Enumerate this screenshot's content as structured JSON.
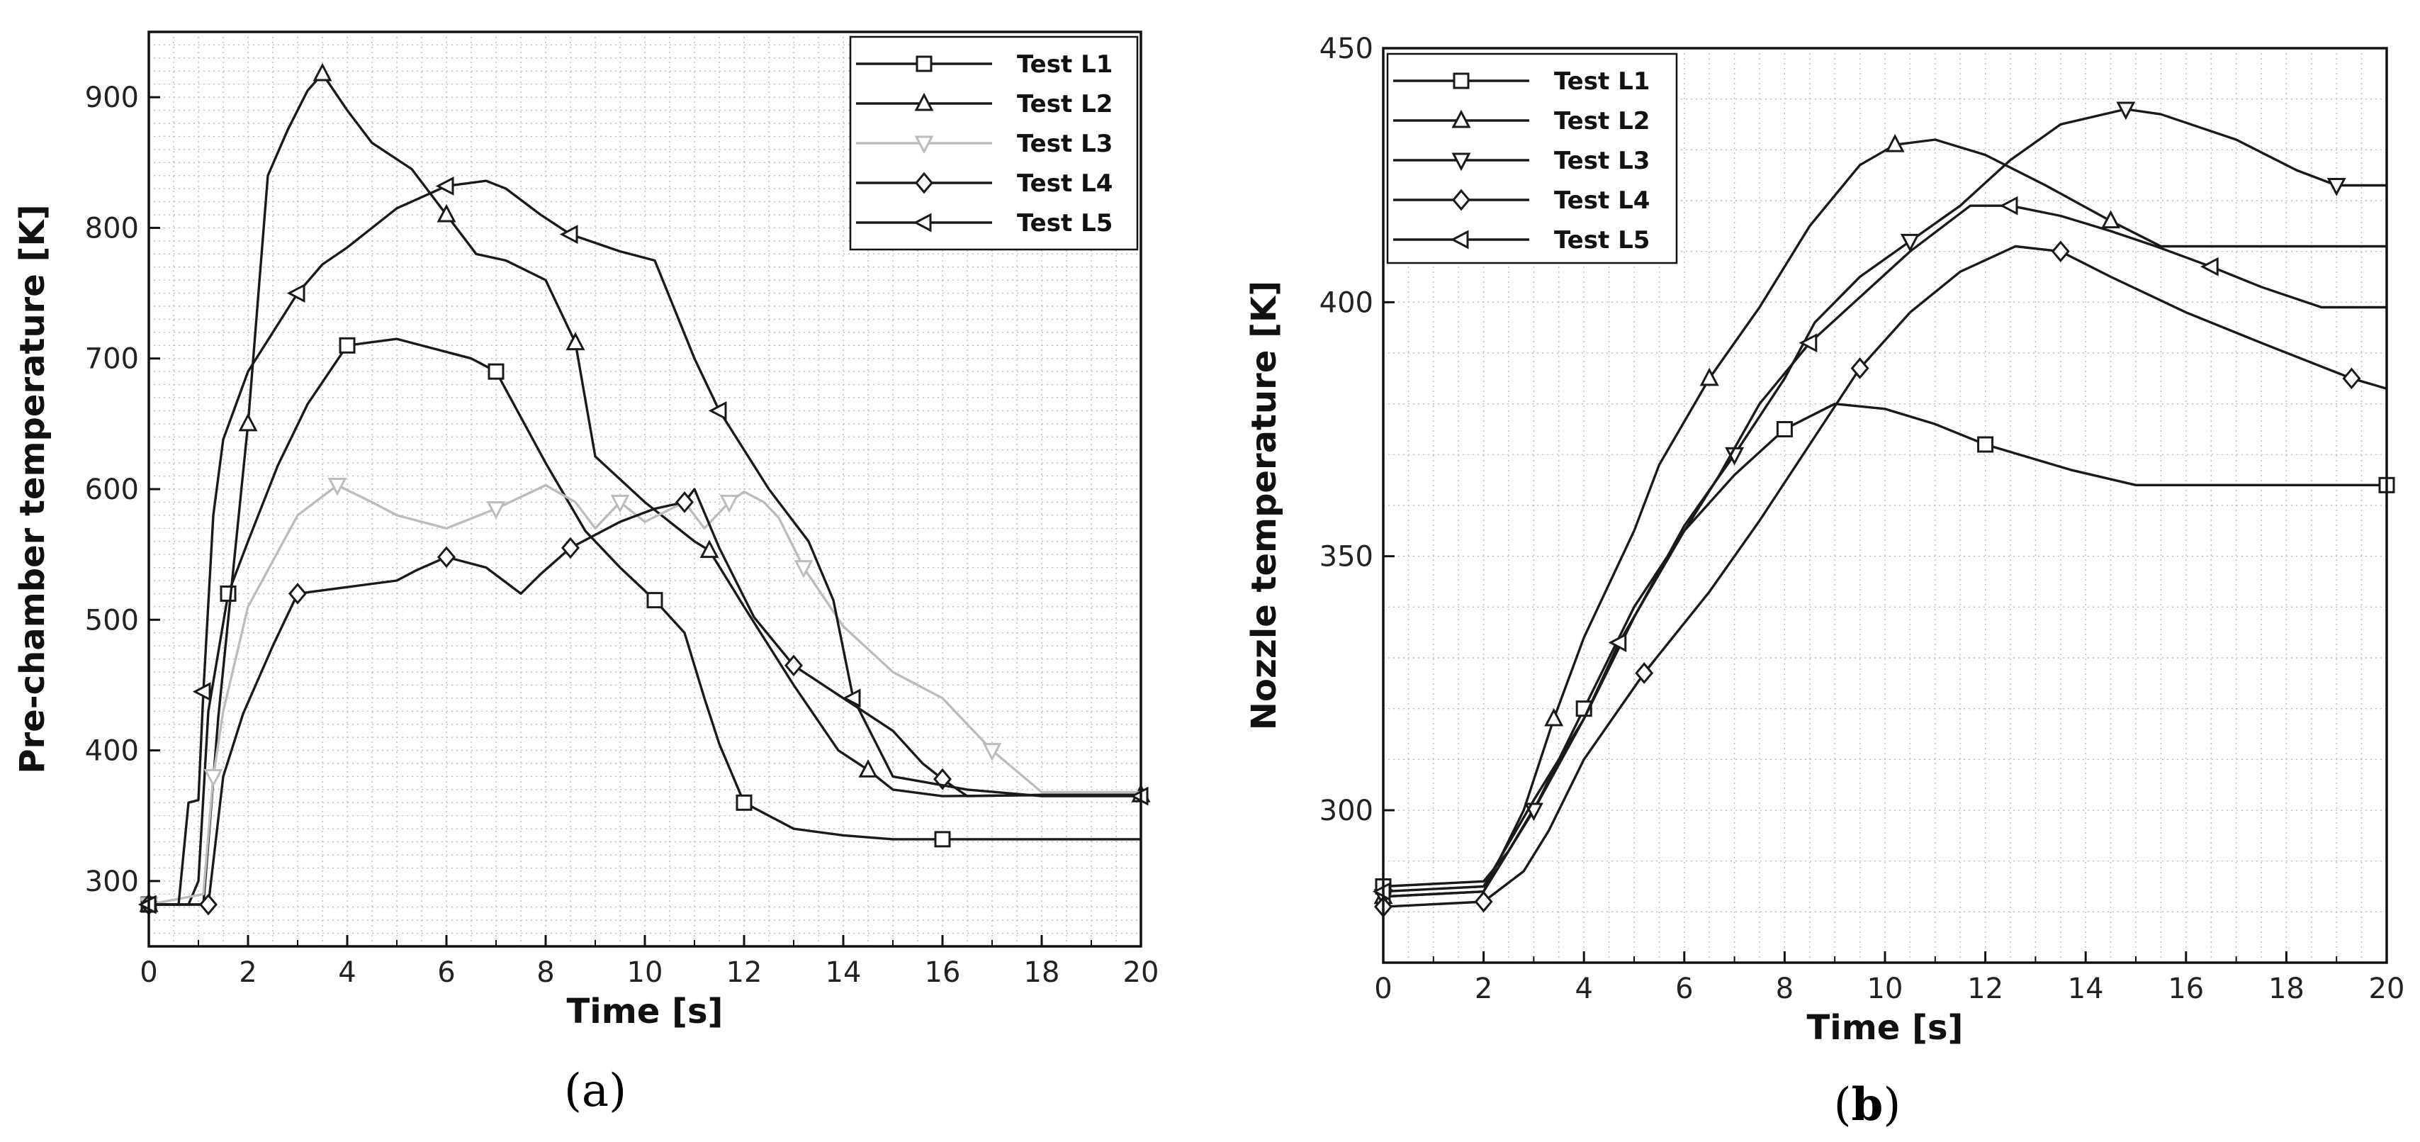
{
  "chart_data": [
    {
      "type": "line",
      "panel_label": "a",
      "panel_open": "(",
      "panel_close": ")",
      "title": "",
      "xlabel": "Time [s]",
      "ylabel": "Pre-chamber temperature [K]",
      "xlim": [
        0,
        20
      ],
      "ylim": [
        250,
        950
      ],
      "xticks": [
        0,
        2,
        4,
        6,
        8,
        10,
        12,
        14,
        16,
        18,
        20
      ],
      "yticks": [
        300,
        400,
        500,
        600,
        700,
        800,
        900
      ],
      "grid": true,
      "legend_position": "top-right",
      "series": [
        {
          "name": "Test L1",
          "marker": "square",
          "color": "#1a1a1a",
          "x": [
            0,
            0.8,
            1.0,
            1.2,
            1.6,
            2.0,
            2.6,
            3.2,
            4.0,
            5.0,
            6.0,
            6.5,
            7.0,
            8.0,
            8.8,
            9.5,
            10.2,
            10.8,
            11.2,
            11.5,
            12.0,
            13.0,
            14.0,
            15.0,
            16.0,
            18.0,
            20.0
          ],
          "y": [
            282,
            282,
            300,
            430,
            520,
            560,
            618,
            665,
            710,
            715,
            705,
            700,
            690,
            620,
            568,
            540,
            515,
            490,
            440,
            405,
            360,
            340,
            335,
            332,
            332,
            332,
            332
          ]
        },
        {
          "name": "Test L2",
          "marker": "triangle-up",
          "color": "#1a1a1a",
          "x": [
            0,
            1.1,
            1.4,
            2.0,
            2.4,
            2.8,
            3.2,
            3.5,
            4.0,
            4.5,
            5.3,
            6.0,
            6.6,
            7.2,
            8.0,
            8.6,
            9.0,
            10.0,
            11.0,
            11.3,
            12.0,
            13.0,
            13.9,
            14.5,
            15.0,
            16.0,
            18.9,
            20.0
          ],
          "y": [
            282,
            282,
            425,
            650,
            840,
            875,
            905,
            918,
            890,
            865,
            845,
            810,
            780,
            775,
            760,
            712,
            625,
            590,
            560,
            553,
            510,
            450,
            400,
            385,
            370,
            365,
            366,
            366
          ]
        },
        {
          "name": "Test L3",
          "marker": "triangle-down",
          "color": "#bcbcbc",
          "x": [
            0,
            1.1,
            1.3,
            1.5,
            2.0,
            3.0,
            3.8,
            4.5,
            5.0,
            6.0,
            7.0,
            8.0,
            8.6,
            9.0,
            9.5,
            10.0,
            10.8,
            11.2,
            11.7,
            12.0,
            12.4,
            12.7,
            13.2,
            14.0,
            15.0,
            16.0,
            17.0,
            18.0,
            20.0
          ],
          "y": [
            282,
            290,
            380,
            430,
            510,
            580,
            603,
            590,
            580,
            570,
            585,
            603,
            590,
            570,
            590,
            575,
            590,
            570,
            590,
            598,
            590,
            578,
            540,
            495,
            460,
            440,
            400,
            368,
            368
          ]
        },
        {
          "name": "Test L4",
          "marker": "diamond",
          "color": "#1a1a1a",
          "x": [
            0,
            1.2,
            1.5,
            1.9,
            2.5,
            3.0,
            4.0,
            5.0,
            5.4,
            6.0,
            6.8,
            7.5,
            7.9,
            8.5,
            9.0,
            9.5,
            10.2,
            10.8,
            11.0,
            11.5,
            12.2,
            13.0,
            14.0,
            15.0,
            15.6,
            16.0,
            16.5,
            18.0,
            20.0
          ],
          "y": [
            282,
            282,
            380,
            428,
            480,
            520,
            525,
            530,
            538,
            548,
            540,
            520,
            535,
            555,
            565,
            575,
            585,
            590,
            600,
            555,
            502,
            465,
            440,
            415,
            390,
            378,
            365,
            366,
            366
          ]
        },
        {
          "name": "Test L5",
          "marker": "triangle-left",
          "color": "#1a1a1a",
          "x": [
            0,
            0.6,
            0.8,
            1.0,
            1.1,
            1.3,
            1.5,
            2.0,
            3.0,
            3.5,
            4.0,
            5.0,
            6.0,
            6.8,
            7.2,
            7.9,
            8.5,
            9.5,
            10.2,
            11.0,
            11.5,
            12.5,
            13.3,
            13.8,
            14.2,
            15.0,
            16.5,
            18.0,
            20.0
          ],
          "y": [
            282,
            282,
            360,
            362,
            445,
            580,
            638,
            690,
            750,
            772,
            785,
            815,
            832,
            836,
            830,
            810,
            795,
            782,
            775,
            700,
            660,
            600,
            560,
            515,
            440,
            380,
            370,
            365,
            365
          ]
        }
      ]
    },
    {
      "type": "line",
      "panel_label": "b",
      "panel_open": "(",
      "panel_close": ")",
      "title": "",
      "xlabel": "Time [s]",
      "ylabel": "Nozzle temperature [K]",
      "xlim": [
        0,
        20
      ],
      "ylim": [
        270,
        450
      ],
      "xticks": [
        0,
        2,
        4,
        6,
        8,
        10,
        12,
        14,
        16,
        18,
        20
      ],
      "yticks": [
        300,
        350,
        400,
        450
      ],
      "grid": true,
      "legend_position": "top-left",
      "series": [
        {
          "name": "Test L1",
          "marker": "square",
          "color": "#1a1a1a",
          "x": [
            0,
            2.0,
            2.5,
            3.1,
            4.0,
            5.0,
            6.0,
            7.0,
            8.0,
            9.0,
            10.0,
            11.0,
            12.0,
            13.7,
            15.0,
            17.7,
            20.0
          ],
          "y": [
            285,
            286,
            292,
            302,
            320,
            340,
            355,
            366,
            375,
            380,
            379,
            376,
            372,
            367,
            364,
            364,
            364
          ]
        },
        {
          "name": "Test L2",
          "marker": "triangle-up",
          "color": "#1a1a1a",
          "x": [
            0,
            2.0,
            2.8,
            3.4,
            4.0,
            5.0,
            5.5,
            6.5,
            7.5,
            8.5,
            9.5,
            10.2,
            11.0,
            12.0,
            13.2,
            14.5,
            15.5,
            16.5,
            20.0
          ],
          "y": [
            283,
            284,
            300,
            318,
            334,
            355,
            368,
            385,
            399,
            415,
            427,
            431,
            432,
            429,
            423,
            416,
            411,
            411,
            411
          ]
        },
        {
          "name": "Test L3",
          "marker": "triangle-down",
          "color": "#1a1a1a",
          "x": [
            0,
            2.0,
            3.0,
            4.0,
            5.0,
            6.0,
            7.0,
            8.0,
            8.6,
            9.5,
            10.5,
            11.5,
            12.5,
            13.5,
            14.8,
            15.5,
            17.0,
            18.2,
            19.0,
            20.0
          ],
          "y": [
            283,
            284,
            300,
            318,
            338,
            356,
            370,
            385,
            396,
            405,
            412,
            419,
            428,
            435,
            438,
            437,
            432,
            426,
            423,
            423
          ]
        },
        {
          "name": "Test L4",
          "marker": "diamond",
          "color": "#1a1a1a",
          "x": [
            0,
            2.0,
            2.8,
            3.3,
            4.0,
            5.2,
            6.5,
            7.5,
            8.5,
            9.5,
            10.5,
            11.5,
            12.6,
            13.5,
            14.5,
            16.0,
            17.5,
            19.3,
            20.0
          ],
          "y": [
            281,
            282,
            288,
            296,
            310,
            327,
            343,
            357,
            372,
            387,
            398,
            406,
            411,
            410,
            405,
            398,
            392,
            385,
            383
          ]
        },
        {
          "name": "Test L5",
          "marker": "triangle-left",
          "color": "#1a1a1a",
          "x": [
            0,
            2.0,
            3.0,
            4.0,
            4.7,
            6.0,
            6.7,
            7.5,
            8.5,
            9.5,
            10.5,
            11.7,
            12.5,
            13.5,
            14.5,
            15.4,
            16.5,
            17.5,
            18.7,
            20.0
          ],
          "y": [
            284,
            285,
            302,
            318,
            333,
            355,
            366,
            380,
            392,
            401,
            410,
            419,
            419,
            417,
            414,
            411,
            407,
            403,
            399,
            399
          ]
        }
      ]
    }
  ]
}
